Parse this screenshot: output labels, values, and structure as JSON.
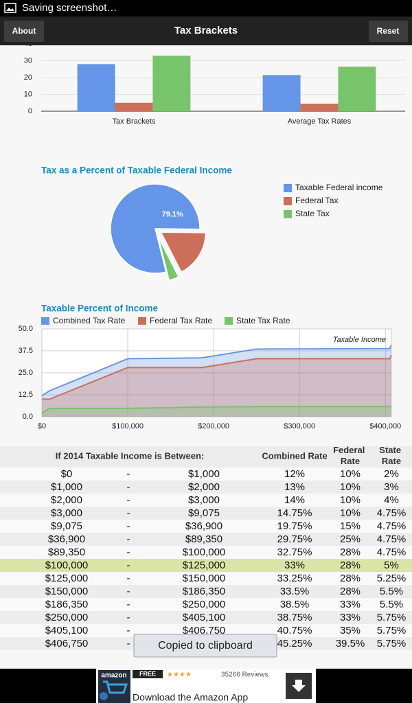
{
  "status_bar": {
    "text": "Saving screenshot…"
  },
  "app_bar": {
    "left_button": "About",
    "title": "Tax Brackets",
    "right_button": "Reset"
  },
  "bar_chart": {
    "type": "bar",
    "categories": [
      "Tax Brackets",
      "Average Tax Rates"
    ],
    "series": [
      {
        "color": "#6495e8",
        "values": [
          28,
          21.5
        ]
      },
      {
        "color": "#cd6e5a",
        "values": [
          5,
          4.5
        ]
      },
      {
        "color": "#77c46a",
        "values": [
          33,
          26.5
        ]
      }
    ],
    "ylim": [
      0,
      40
    ],
    "yticks": [
      0,
      10,
      20,
      30,
      40
    ],
    "grid": true
  },
  "pie_chart": {
    "type": "pie",
    "title": "Tax as a Percent of Taxable Federal Income",
    "categories": [
      "Taxable Federal income",
      "Federal Tax",
      "State Tax"
    ],
    "values": [
      79.1,
      17.3,
      3.6
    ],
    "value_labels": [
      "79.1%",
      null,
      null
    ],
    "colors": [
      "#6495e8",
      "#cd6e5a",
      "#77c46a"
    ],
    "legend": "right"
  },
  "area_chart": {
    "type": "area",
    "title": "Taxable Percent of Income",
    "annotation": "Taxable Income",
    "x": [
      0,
      9075,
      100000,
      186350,
      250000,
      405100,
      406750
    ],
    "series": [
      {
        "name": "Combined Tax Rate",
        "color": "#6a97e2",
        "values": [
          12,
          14.75,
          33,
          33.5,
          38.5,
          38.75,
          40.75
        ]
      },
      {
        "name": "Federal Tax Rate",
        "color": "#cd6e5a",
        "values": [
          10,
          10,
          28,
          28,
          33,
          33,
          35
        ]
      },
      {
        "name": "State Tax Rate",
        "color": "#77c46a",
        "values": [
          2,
          4.75,
          4.75,
          5.5,
          5.75,
          5.75,
          5.75
        ]
      }
    ],
    "xlim": [
      0,
      407000
    ],
    "xticks": [
      {
        "value": 0,
        "label": "$0"
      },
      {
        "value": 100000,
        "label": "$100,000"
      },
      {
        "value": 200000,
        "label": "$200,000"
      },
      {
        "value": 300000,
        "label": "$300,000"
      },
      {
        "value": 400000,
        "label": "$400,000"
      }
    ],
    "ylim": [
      0,
      50
    ],
    "yticks": [
      {
        "value": 0,
        "label": "0.0"
      },
      12.5,
      {
        "value": 25,
        "label": "25.0"
      },
      37.5,
      {
        "value": 50,
        "label": "50.0"
      }
    ],
    "grid": true,
    "legend": "top"
  },
  "table": {
    "header": [
      "If 2014 Taxable Income is Between:",
      "Combined Rate",
      "Federal Rate",
      "State Rate"
    ],
    "rows": [
      [
        "$0",
        "-",
        "$1,000",
        "12%",
        "10%",
        "2%"
      ],
      [
        "$1,000",
        "-",
        "$2,000",
        "13%",
        "10%",
        "3%"
      ],
      [
        "$2,000",
        "-",
        "$3,000",
        "14%",
        "10%",
        "4%"
      ],
      [
        "$3,000",
        "-",
        "$9,075",
        "14.75%",
        "10%",
        "4.75%"
      ],
      [
        "$9,075",
        "-",
        "$36,900",
        "19.75%",
        "15%",
        "4.75%"
      ],
      [
        "$36,900",
        "-",
        "$89,350",
        "29.75%",
        "25%",
        "4.75%"
      ],
      [
        "$89,350",
        "-",
        "$100,000",
        "32.75%",
        "28%",
        "4.75%"
      ],
      [
        "$100,000",
        "-",
        "$125,000",
        "33%",
        "28%",
        "5%"
      ],
      [
        "$125,000",
        "-",
        "$150,000",
        "33.25%",
        "28%",
        "5.25%"
      ],
      [
        "$150,000",
        "-",
        "$186,350",
        "33.5%",
        "28%",
        "5.5%"
      ],
      [
        "$186,350",
        "-",
        "$250,000",
        "38.5%",
        "33%",
        "5.5%"
      ],
      [
        "$250,000",
        "-",
        "$405,100",
        "38.75%",
        "33%",
        "5.75%"
      ],
      [
        "$405,100",
        "-",
        "$406,750",
        "40.75%",
        "35%",
        "5.75%"
      ],
      [
        "$406,750",
        "-",
        "",
        "45.25%",
        "39.5%",
        "5.75%"
      ]
    ],
    "highlighted_row": 7
  },
  "toast": {
    "text": "Copied to clipboard"
  },
  "ad": {
    "brand": "amazon",
    "badge": "FREE",
    "rating": "★★★★",
    "reviews": "35266 Reviews",
    "text": "Download the Amazon App"
  }
}
